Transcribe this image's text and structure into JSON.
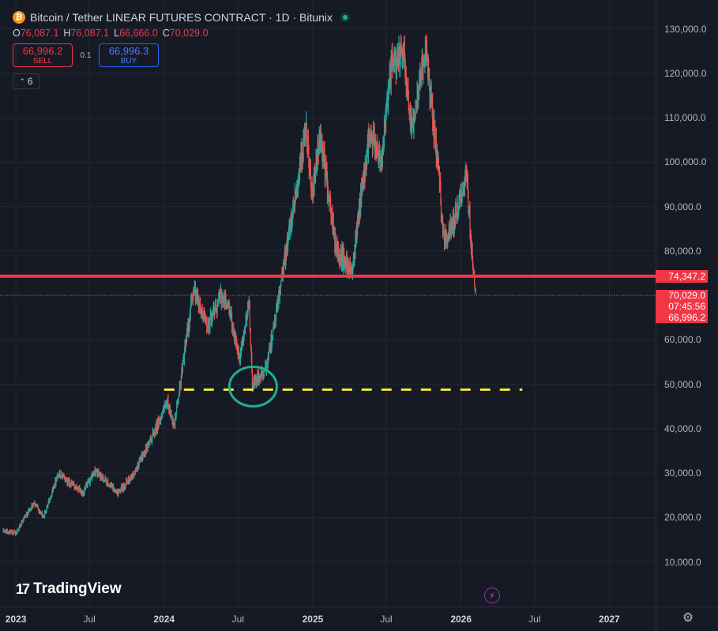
{
  "header": {
    "coin_symbol": "₿",
    "title": "Bitcoin / Tether LINEAR FUTURES CONTRACT · 1D · Bitunix",
    "ohlc": [
      {
        "k": "O",
        "v": "76,087.1"
      },
      {
        "k": "H",
        "v": "76,087.1"
      },
      {
        "k": "L",
        "v": "66,666.0"
      },
      {
        "k": "C",
        "v": "70,029.0"
      }
    ]
  },
  "trade": {
    "sell_price": "66,996.2",
    "sell_label": "SELL",
    "spread": "0.1",
    "buy_price": "66,996.3",
    "buy_label": "BUY"
  },
  "indicators": {
    "count": "6",
    "icon": "chevron-up-icon"
  },
  "branding": {
    "logo_text": "TradingView",
    "logo_mark": "17"
  },
  "colors": {
    "up": "#26a69a",
    "down": "#ef5350",
    "resistance_line": "#f23645",
    "support_line": "#f5e642",
    "annotation_circle": "#22ab94",
    "background": "#161a25"
  },
  "chart_data": {
    "type": "candlestick",
    "y_ticks": [
      "10,000.0",
      "20,000.0",
      "30,000.0",
      "40,000.0",
      "50,000.0",
      "60,000.0",
      "70,000.0",
      "80,000.0",
      "90,000.0",
      "100,000.0",
      "110,000.0",
      "120,000.0",
      "130,000.0"
    ],
    "x_ticks": [
      {
        "label": "2023",
        "date": "2023-01-01",
        "bold": true
      },
      {
        "label": "Jul",
        "date": "2023-07-01",
        "bold": false
      },
      {
        "label": "2024",
        "date": "2024-01-01",
        "bold": true
      },
      {
        "label": "Jul",
        "date": "2024-07-01",
        "bold": false
      },
      {
        "label": "2025",
        "date": "2025-01-01",
        "bold": true
      },
      {
        "label": "Jul",
        "date": "2025-07-01",
        "bold": false
      },
      {
        "label": "2026",
        "date": "2026-01-01",
        "bold": true
      },
      {
        "label": "Jul",
        "date": "2026-07-01",
        "bold": false
      },
      {
        "label": "2027",
        "date": "2027-01-01",
        "bold": true
      }
    ],
    "ylim": [
      0,
      136500
    ],
    "xlim": [
      "2022-11-23",
      "2027-04-25"
    ],
    "series": [
      {
        "date": "2022-12-01",
        "price": 17000
      },
      {
        "date": "2023-01-01",
        "price": 16500
      },
      {
        "date": "2023-02-15",
        "price": 23500
      },
      {
        "date": "2023-03-10",
        "price": 20000
      },
      {
        "date": "2023-04-15",
        "price": 30000
      },
      {
        "date": "2023-06-15",
        "price": 25500
      },
      {
        "date": "2023-07-15",
        "price": 30500
      },
      {
        "date": "2023-09-10",
        "price": 25500
      },
      {
        "date": "2023-10-20",
        "price": 30000
      },
      {
        "date": "2023-12-01",
        "price": 38000
      },
      {
        "date": "2024-01-10",
        "price": 46000
      },
      {
        "date": "2024-01-25",
        "price": 40000
      },
      {
        "date": "2024-02-28",
        "price": 62000
      },
      {
        "date": "2024-03-14",
        "price": 72000
      },
      {
        "date": "2024-04-15",
        "price": 63000
      },
      {
        "date": "2024-05-20",
        "price": 70000
      },
      {
        "date": "2024-06-10",
        "price": 67000
      },
      {
        "date": "2024-07-05",
        "price": 55000
      },
      {
        "date": "2024-07-28",
        "price": 69000
      },
      {
        "date": "2024-08-05",
        "price": 50000
      },
      {
        "date": "2024-09-06",
        "price": 53000
      },
      {
        "date": "2024-09-30",
        "price": 64000
      },
      {
        "date": "2024-11-10",
        "price": 88000
      },
      {
        "date": "2024-12-17",
        "price": 107000
      },
      {
        "date": "2024-12-30",
        "price": 92000
      },
      {
        "date": "2025-01-20",
        "price": 106000
      },
      {
        "date": "2025-02-28",
        "price": 80000
      },
      {
        "date": "2025-04-07",
        "price": 76000
      },
      {
        "date": "2025-05-20",
        "price": 106000
      },
      {
        "date": "2025-06-20",
        "price": 101000
      },
      {
        "date": "2025-07-14",
        "price": 122000
      },
      {
        "date": "2025-08-14",
        "price": 124000
      },
      {
        "date": "2025-09-01",
        "price": 108000
      },
      {
        "date": "2025-10-06",
        "price": 125500
      },
      {
        "date": "2025-11-04",
        "price": 100000
      },
      {
        "date": "2025-11-21",
        "price": 82000
      },
      {
        "date": "2025-12-15",
        "price": 87000
      },
      {
        "date": "2026-01-14",
        "price": 97000
      },
      {
        "date": "2026-02-05",
        "price": 70000
      },
      {
        "date": "2026-02-06",
        "price": 70029
      }
    ],
    "price_labels": [
      {
        "text": "74,347.2",
        "price": 74347.2
      },
      {
        "text": "70,029.0",
        "price": 70029.0
      },
      {
        "text": "07:45:56",
        "price": 68000
      },
      {
        "text": "66,996.2",
        "price": 66996.2
      }
    ],
    "resistance_line": {
      "price": 74347.2
    },
    "current_price_line": {
      "price": 70029.0
    },
    "support_line": {
      "price": 48800,
      "from": "2024-01-01",
      "to": "2026-06-01"
    },
    "annotation_circle": {
      "date": "2024-08-07",
      "price": 49500
    }
  }
}
